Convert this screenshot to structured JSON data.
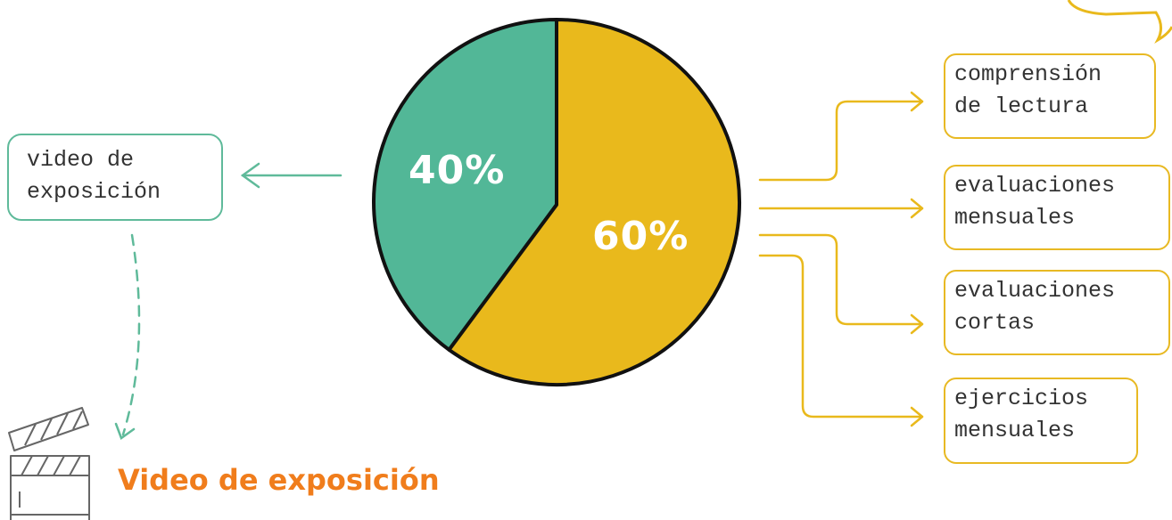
{
  "colors": {
    "teal": "#52b797",
    "yellow": "#e9b91c",
    "outline": "#111111",
    "orange_title": "#f07d1c"
  },
  "chart_data": {
    "type": "pie",
    "slices": [
      {
        "label": "40%",
        "value": 40,
        "color": "#52b797"
      },
      {
        "label": "60%",
        "value": 60,
        "color": "#e9b91c"
      }
    ]
  },
  "left_box": {
    "label": "video de\nexposición"
  },
  "right_boxes": [
    {
      "label": "comprensión\nde lectura"
    },
    {
      "label": "evaluaciones\nmensuales"
    },
    {
      "label": "evaluaciones\ncortas"
    },
    {
      "label": "ejercicios\nmensuales"
    }
  ],
  "footer": {
    "title": "Video de exposición",
    "icon": "clapperboard-icon"
  }
}
